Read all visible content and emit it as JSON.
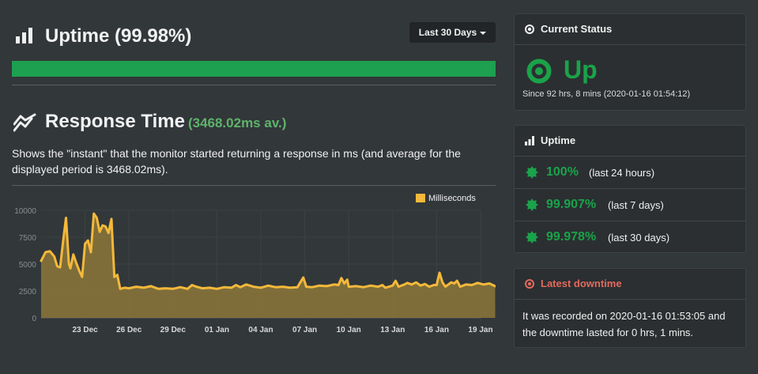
{
  "uptime": {
    "title": "Uptime (99.98%)",
    "range_button": "Last 30 Days",
    "bar_fraction": 0.9998,
    "bar_color": "#1da04f"
  },
  "response_time": {
    "title": "Response Time",
    "average": "(3468.02ms av.)",
    "description": "Shows the \"instant\" that the monitor started returning a response in ms (and average for the displayed period is 3468.02ms)."
  },
  "chart_data": {
    "type": "area",
    "legend": "Milliseconds",
    "legend_position": "top-right",
    "series_color": "#f4b93a",
    "fill_color": "#8c7739",
    "grid": true,
    "ylim": [
      0,
      10000
    ],
    "yticks": [
      "0",
      "2500",
      "5000",
      "7500",
      "10000"
    ],
    "xlim": [
      20,
      50
    ],
    "xticks": [
      {
        "x": 23,
        "label": "23 Dec"
      },
      {
        "x": 26,
        "label": "26 Dec"
      },
      {
        "x": 29,
        "label": "29 Dec"
      },
      {
        "x": 32,
        "label": "01 Jan"
      },
      {
        "x": 35,
        "label": "04 Jan"
      },
      {
        "x": 38,
        "label": "07 Jan"
      },
      {
        "x": 41,
        "label": "10 Jan"
      },
      {
        "x": 44,
        "label": "13 Jan"
      },
      {
        "x": 47,
        "label": "16 Jan"
      },
      {
        "x": 50,
        "label": "19 Jan"
      }
    ],
    "points": [
      [
        20.0,
        5300
      ],
      [
        20.3,
        6100
      ],
      [
        20.6,
        6200
      ],
      [
        20.9,
        5700
      ],
      [
        21.1,
        4800
      ],
      [
        21.3,
        4700
      ],
      [
        21.5,
        7100
      ],
      [
        21.7,
        9300
      ],
      [
        21.9,
        5000
      ],
      [
        22.0,
        4600
      ],
      [
        22.2,
        5900
      ],
      [
        22.4,
        5100
      ],
      [
        22.6,
        4400
      ],
      [
        22.8,
        3800
      ],
      [
        23.0,
        6900
      ],
      [
        23.2,
        7200
      ],
      [
        23.4,
        6100
      ],
      [
        23.6,
        9700
      ],
      [
        23.8,
        9300
      ],
      [
        24.0,
        8000
      ],
      [
        24.2,
        8600
      ],
      [
        24.4,
        8500
      ],
      [
        24.6,
        7900
      ],
      [
        24.8,
        9200
      ],
      [
        25.0,
        3800
      ],
      [
        25.2,
        4000
      ],
      [
        25.4,
        2700
      ],
      [
        25.7,
        2800
      ],
      [
        26.0,
        2750
      ],
      [
        26.5,
        2900
      ],
      [
        27.0,
        2800
      ],
      [
        27.5,
        2950
      ],
      [
        28.0,
        2700
      ],
      [
        28.5,
        2750
      ],
      [
        29.0,
        2700
      ],
      [
        29.5,
        2850
      ],
      [
        30.0,
        2700
      ],
      [
        30.3,
        3050
      ],
      [
        30.6,
        2900
      ],
      [
        31.0,
        2750
      ],
      [
        31.5,
        2800
      ],
      [
        32.0,
        2700
      ],
      [
        32.5,
        2850
      ],
      [
        33.0,
        2800
      ],
      [
        33.3,
        3050
      ],
      [
        33.6,
        2850
      ],
      [
        34.0,
        3100
      ],
      [
        34.5,
        2900
      ],
      [
        35.0,
        2800
      ],
      [
        35.5,
        3000
      ],
      [
        36.0,
        2850
      ],
      [
        36.5,
        2900
      ],
      [
        37.0,
        2800
      ],
      [
        37.5,
        2850
      ],
      [
        37.9,
        3750
      ],
      [
        38.1,
        2900
      ],
      [
        38.5,
        2850
      ],
      [
        39.0,
        3000
      ],
      [
        39.5,
        2950
      ],
      [
        40.0,
        3100
      ],
      [
        40.3,
        3050
      ],
      [
        40.5,
        3700
      ],
      [
        40.7,
        3200
      ],
      [
        40.9,
        3550
      ],
      [
        41.0,
        2900
      ],
      [
        41.5,
        2950
      ],
      [
        42.0,
        2850
      ],
      [
        42.5,
        3000
      ],
      [
        43.0,
        2900
      ],
      [
        43.3,
        3050
      ],
      [
        43.5,
        2800
      ],
      [
        44.0,
        3000
      ],
      [
        44.2,
        3450
      ],
      [
        44.4,
        2900
      ],
      [
        44.8,
        3100
      ],
      [
        45.0,
        3250
      ],
      [
        45.3,
        3100
      ],
      [
        45.6,
        3300
      ],
      [
        45.9,
        3000
      ],
      [
        46.2,
        3150
      ],
      [
        46.5,
        2900
      ],
      [
        46.8,
        3050
      ],
      [
        47.0,
        3050
      ],
      [
        47.2,
        4200
      ],
      [
        47.4,
        3300
      ],
      [
        47.6,
        2900
      ],
      [
        48.0,
        3300
      ],
      [
        48.2,
        3200
      ],
      [
        48.4,
        3450
      ],
      [
        48.6,
        2900
      ],
      [
        49.0,
        3100
      ],
      [
        49.4,
        3050
      ],
      [
        49.8,
        3250
      ],
      [
        50.2,
        3100
      ],
      [
        50.6,
        3200
      ],
      [
        51.0,
        2950
      ]
    ]
  },
  "current_status": {
    "heading": "Current Status",
    "state": "Up",
    "since": "Since 92 hrs, 8 mins (2020-01-16 01:54:12)",
    "color": "#1aa34a"
  },
  "uptime_panel": {
    "heading": "Uptime",
    "rows": [
      {
        "pct": "100%",
        "period": "(last 24 hours)"
      },
      {
        "pct": "99.907%",
        "period": "(last 7 days)"
      },
      {
        "pct": "99.978%",
        "period": "(last 30 days)"
      }
    ]
  },
  "latest_downtime": {
    "heading": "Latest downtime",
    "text": "It was recorded on 2020-01-16 01:53:05 and the downtime lasted for 0 hrs, 1 mins.",
    "color": "#e36a5c"
  }
}
